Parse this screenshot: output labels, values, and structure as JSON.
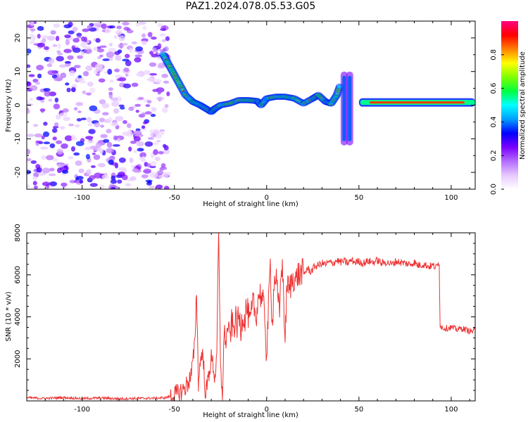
{
  "chart_data": [
    {
      "type": "heatmap",
      "title": "PAZ1.2024.078.05.53.G05",
      "xlabel": "Height of straight line (km)",
      "ylabel": "Frequency (Hz)",
      "xlim": [
        -130,
        113
      ],
      "ylim": [
        -25,
        25
      ],
      "xticks": [
        -100,
        -50,
        0,
        50,
        100
      ],
      "yticks": [
        -20,
        -10,
        0,
        10,
        20
      ],
      "colorbar": {
        "label": "Normalized spectral amplitude",
        "range": [
          0,
          1
        ],
        "ticks": [
          0.0,
          0.2,
          0.4,
          0.6,
          0.8
        ],
        "colormap": [
          "#ffffff",
          "#e6c8ff",
          "#b46bff",
          "#7a00ff",
          "#0000ff",
          "#00a0ff",
          "#00ffff",
          "#00ff40",
          "#80ff00",
          "#ffff00",
          "#ff8000",
          "#ff0000",
          "#ff0080"
        ]
      },
      "noise_region_km": [
        -130,
        -53
      ],
      "ridge": {
        "x": [
          -56,
          -53,
          -50,
          -47,
          -44,
          -40,
          -36,
          -33,
          -30,
          -28,
          -25,
          -20,
          -15,
          -10,
          -5,
          -3,
          0,
          5,
          10,
          15,
          20,
          25,
          28,
          32,
          35,
          38,
          40
        ],
        "y": [
          15,
          12,
          9,
          6,
          3,
          1,
          0,
          -1,
          -2,
          -1,
          0,
          0.5,
          1.5,
          1.5,
          1.2,
          0,
          2,
          2.5,
          2.5,
          2,
          0.5,
          2,
          3,
          1,
          0.5,
          3,
          6
        ],
        "secondary_segments": [
          {
            "x": 42,
            "y": [
              -12,
              10
            ]
          },
          {
            "x": 45,
            "y": [
              -12,
              10
            ]
          }
        ],
        "flat_segment": {
          "x": [
            50,
            113
          ],
          "y": 0.8
        }
      }
    },
    {
      "type": "line",
      "xlabel": "Height of straight line (km)",
      "ylabel": "SNR (10 * v/v)",
      "xlim": [
        -130,
        113
      ],
      "ylim": [
        0,
        8000
      ],
      "xticks": [
        -100,
        -50,
        0,
        50,
        100
      ],
      "yticks": [
        2000,
        4000,
        6000,
        8000
      ],
      "color": "#ee3333",
      "series": [
        {
          "x": [
            -130,
            -120,
            -110,
            -100,
            -90,
            -80,
            -70,
            -60,
            -55,
            -50,
            -47,
            -45,
            -43,
            -41,
            -40,
            -39,
            -38,
            -37,
            -36,
            -35,
            -34,
            -33,
            -32,
            -31,
            -30,
            -29,
            -28,
            -27,
            -26,
            -25,
            -24,
            -23,
            -22,
            -21,
            -20,
            -19,
            -18,
            -17,
            -16,
            -15,
            -14,
            -13,
            -12,
            -11,
            -10,
            -9,
            -8,
            -7,
            -6,
            -5,
            -4,
            -3,
            -2,
            -1,
            0,
            1,
            2,
            3,
            4,
            5,
            6,
            7,
            8,
            9,
            10,
            11,
            12,
            13,
            14,
            15,
            16,
            17,
            18,
            19,
            20,
            22,
            24,
            26,
            28,
            30,
            32,
            34,
            36,
            38,
            40,
            42,
            44,
            46,
            48,
            50,
            52,
            55,
            58,
            60,
            62,
            65,
            68,
            70,
            72,
            75,
            78,
            80,
            82,
            85,
            88,
            90,
            92,
            93.5,
            94,
            95,
            97,
            100,
            103,
            106,
            109,
            111,
            113
          ],
          "y": [
            150,
            120,
            160,
            110,
            140,
            100,
            120,
            130,
            150,
            250,
            400,
            550,
            800,
            1200,
            1800,
            2600,
            5300,
            900,
            1800,
            2400,
            1500,
            200,
            900,
            1500,
            2000,
            1700,
            1000,
            2600,
            8000,
            1400,
            300,
            3300,
            2800,
            3600,
            3000,
            3700,
            3400,
            3900,
            3600,
            4000,
            3400,
            4200,
            3800,
            4500,
            4100,
            3600,
            4300,
            4700,
            3900,
            4600,
            5200,
            5000,
            4600,
            4100,
            2000,
            4400,
            6600,
            3600,
            5600,
            6000,
            4800,
            4200,
            6700,
            5600,
            2700,
            5700,
            5200,
            5500,
            5800,
            5900,
            5700,
            6100,
            5900,
            6200,
            6000,
            6300,
            6150,
            6400,
            6450,
            6550,
            6500,
            6600,
            6550,
            6700,
            6600,
            6650,
            6550,
            6700,
            6600,
            6650,
            6550,
            6650,
            6600,
            6700,
            6550,
            6600,
            6500,
            6650,
            6600,
            6550,
            6500,
            6600,
            6450,
            6500,
            6400,
            6450,
            6350,
            6600,
            3600,
            3500,
            3450,
            3500,
            3400,
            3450,
            3350,
            3300,
            3400
          ]
        }
      ]
    }
  ]
}
